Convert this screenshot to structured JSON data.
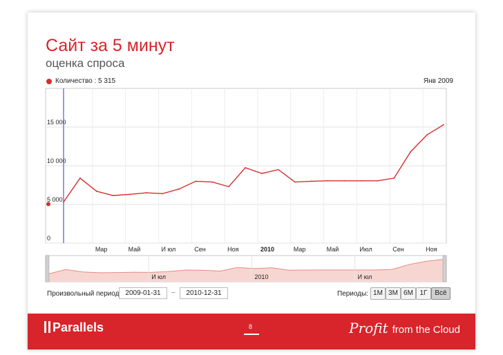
{
  "slide": {
    "title": "Сайт за 5 минут",
    "subtitle": "оценка спроса",
    "page_number": "8"
  },
  "legend": {
    "series_label": "Количество : 5 315",
    "date_label": "Янв 2009",
    "series_color": "#d32f2f"
  },
  "chart_data": {
    "type": "line",
    "series": [
      {
        "name": "Количество",
        "values": [
          5315,
          8400,
          6700,
          6150,
          6300,
          6500,
          6400,
          7000,
          8000,
          7900,
          7300,
          9750,
          9000,
          9500,
          7900,
          8000,
          8050,
          8050,
          8050,
          8050,
          8400,
          11800,
          14000,
          15300
        ]
      }
    ],
    "x": [
      "2009-01",
      "2009-02",
      "2009-03",
      "2009-04",
      "2009-05",
      "2009-06",
      "2009-07",
      "2009-08",
      "2009-09",
      "2009-10",
      "2009-11",
      "2009-12",
      "2010-01",
      "2010-02",
      "2010-03",
      "2010-04",
      "2010-05",
      "2010-06",
      "2010-07",
      "2010-08",
      "2010-09",
      "2010-10",
      "2010-11",
      "2010-12"
    ],
    "x_tick_labels": [
      "Мар",
      "Май",
      "И юл",
      "Сен",
      "Ноя",
      "2010",
      "Мар",
      "Май",
      "Июл",
      "Сен",
      "Ноя"
    ],
    "y_ticks": [
      0,
      5000,
      10000,
      15000
    ],
    "y_tick_labels": [
      "0",
      "5 000",
      "10 000",
      "15 000"
    ],
    "ylim": [
      0,
      20000
    ],
    "grid": true,
    "legend": "top-left",
    "navigator_labels": [
      "И юл",
      "2010",
      "И юл"
    ]
  },
  "controls": {
    "custom_period_label": "Произвольный период:",
    "date_from": "2009-01-31",
    "date_to": "2010-12-31",
    "dash": "–",
    "periods_label": "Периоды:",
    "period_buttons": [
      "1М",
      "3М",
      "6М",
      "1Г",
      "Всё"
    ],
    "active_period": "Всё"
  },
  "footer": {
    "logo_text": "Parallels",
    "slogan_profit": "Profit",
    "slogan_rest": "from the Cloud",
    "background_color": "#d8242b"
  }
}
